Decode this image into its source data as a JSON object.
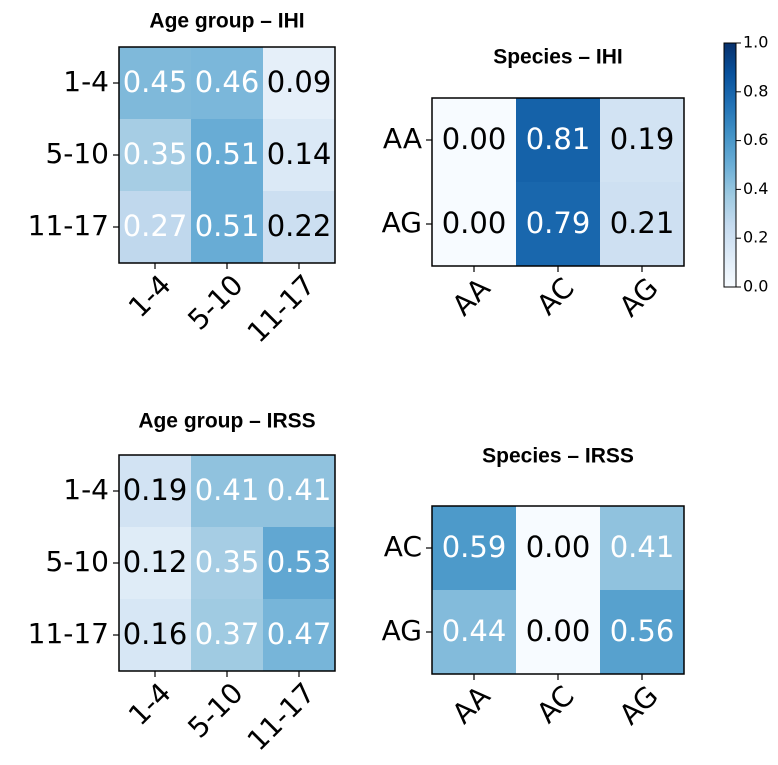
{
  "chart_data": [
    {
      "type": "heatmap",
      "title": "Age group – IHI",
      "x_categories": [
        "1-4",
        "5-10",
        "11-17"
      ],
      "y_categories": [
        "1-4",
        "5-10",
        "11-17"
      ],
      "values": [
        [
          0.45,
          0.46,
          0.09
        ],
        [
          0.35,
          0.51,
          0.14
        ],
        [
          0.27,
          0.51,
          0.22
        ]
      ],
      "value_labels": [
        [
          "0.45",
          "0.46",
          "0.09"
        ],
        [
          "0.35",
          "0.51",
          "0.14"
        ],
        [
          "0.27",
          "0.51",
          "0.22"
        ]
      ]
    },
    {
      "type": "heatmap",
      "title": "Species – IHI",
      "x_categories": [
        "AA",
        "AC",
        "AG"
      ],
      "y_categories": [
        "AA",
        "AG"
      ],
      "values": [
        [
          0.0,
          0.81,
          0.19
        ],
        [
          0.0,
          0.79,
          0.21
        ]
      ],
      "value_labels": [
        [
          "0.00",
          "0.81",
          "0.19"
        ],
        [
          "0.00",
          "0.79",
          "0.21"
        ]
      ]
    },
    {
      "type": "heatmap",
      "title": "Age group – IRSS",
      "x_categories": [
        "1-4",
        "5-10",
        "11-17"
      ],
      "y_categories": [
        "1-4",
        "5-10",
        "11-17"
      ],
      "values": [
        [
          0.19,
          0.41,
          0.41
        ],
        [
          0.12,
          0.35,
          0.53
        ],
        [
          0.16,
          0.37,
          0.47
        ]
      ],
      "value_labels": [
        [
          "0.19",
          "0.41",
          "0.41"
        ],
        [
          "0.12",
          "0.35",
          "0.53"
        ],
        [
          "0.16",
          "0.37",
          "0.47"
        ]
      ]
    },
    {
      "type": "heatmap",
      "title": "Species – IRSS",
      "x_categories": [
        "AA",
        "AC",
        "AG"
      ],
      "y_categories": [
        "AC",
        "AG"
      ],
      "values": [
        [
          0.59,
          0.0,
          0.41
        ],
        [
          0.44,
          0.0,
          0.56
        ]
      ],
      "value_labels": [
        [
          "0.59",
          "0.00",
          "0.41"
        ],
        [
          "0.44",
          "0.00",
          "0.56"
        ]
      ]
    },
    {
      "type": "colorbar",
      "colormap": "Blues",
      "ylim": [
        0,
        1
      ],
      "yticks": [
        {
          "value": 0,
          "label": "0.0"
        },
        {
          "value": 0.2,
          "label": "0.2"
        },
        {
          "value": 0.4,
          "label": "0.4"
        },
        {
          "value": 0.6,
          "label": "0.6"
        },
        {
          "value": 0.8,
          "label": "0.8"
        },
        {
          "value": 1,
          "label": "1.0"
        }
      ]
    }
  ]
}
